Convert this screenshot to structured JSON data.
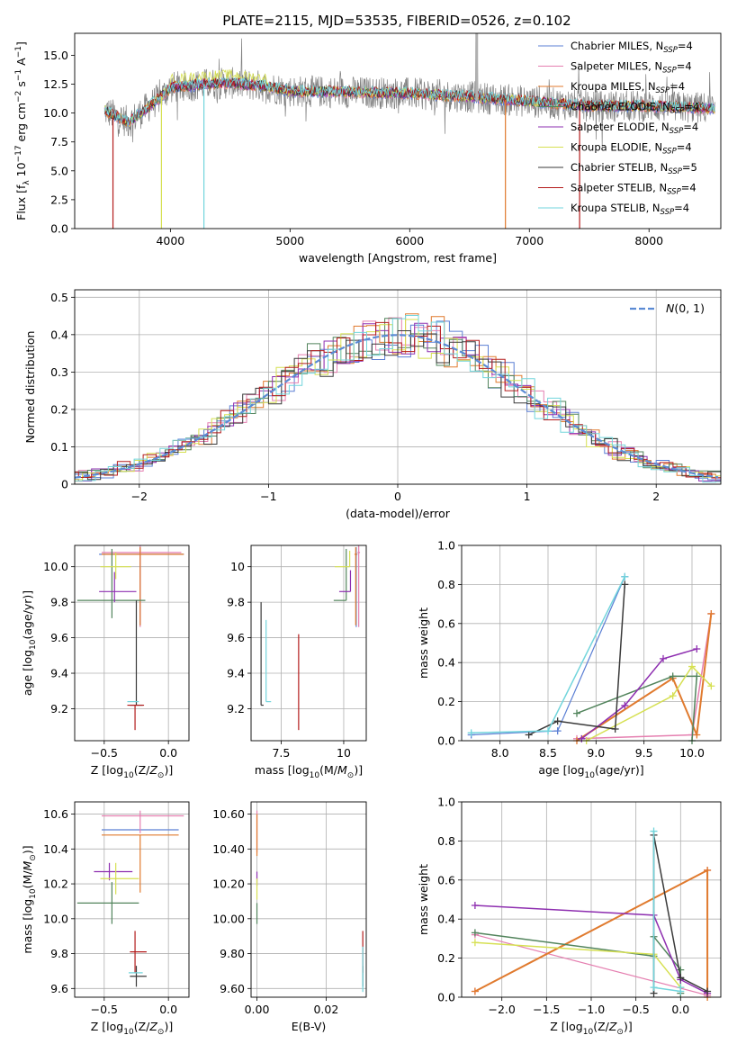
{
  "figure_title": "PLATE=2115, MJD=53535, FIBERID=0526, z=0.102",
  "colors": {
    "Chabrier MILES": "#5b7fd4",
    "Salpeter MILES": "#e57fb0",
    "Kroupa MILES": "#e07a2e",
    "Chabrier ELODIE": "#52845c",
    "Salpeter ELODIE": "#8e2fb0",
    "Kroupa ELODIE": "#d6e052",
    "Chabrier STELIB": "#3a3a3a",
    "Salpeter STELIB": "#b31b1b",
    "Kroupa STELIB": "#72d5dc"
  },
  "chart_data": [
    {
      "id": "spectrum",
      "type": "line",
      "title": "PLATE=2115, MJD=53535, FIBERID=0526, z=0.102",
      "xlabel": "wavelength [Angstrom, rest frame]",
      "ylabel": "Flux [f_λ 10^-17 erg cm^-2 s^-1 A^-1]",
      "xlim": [
        3200,
        8600
      ],
      "ylim": [
        0,
        16.9
      ],
      "xticks": [
        4000,
        5000,
        6000,
        7000,
        8000
      ],
      "yticks": [
        0.0,
        2.5,
        5.0,
        7.5,
        10.0,
        12.5,
        15.0
      ],
      "grid": false,
      "legend_position": "top-right",
      "legend": [
        {
          "name": "Chabrier MILES",
          "sub": "SSP",
          "n": "4"
        },
        {
          "name": "Salpeter MILES",
          "sub": "SSP",
          "n": "4"
        },
        {
          "name": "Kroupa MILES",
          "sub": "SSP",
          "n": "4"
        },
        {
          "name": "Chabrier ELODIE",
          "sub": "SSP",
          "n": "4"
        },
        {
          "name": "Salpeter ELODIE",
          "sub": "SSP",
          "n": "4"
        },
        {
          "name": "Kroupa ELODIE",
          "sub": "SSP",
          "n": "4"
        },
        {
          "name": "Chabrier STELIB",
          "sub": "SSP",
          "n": "5"
        },
        {
          "name": "Salpeter STELIB",
          "sub": "SSP",
          "n": "4"
        },
        {
          "name": "Kroupa STELIB",
          "sub": "SSP",
          "n": "4"
        }
      ],
      "data_range_A": [
        3450,
        8550
      ],
      "continuum": {
        "x": [
          3450,
          3650,
          3900,
          4000,
          4300,
          4500,
          4800,
          5000,
          5500,
          6000,
          6500,
          7000,
          7500,
          8000,
          8550
        ],
        "y": [
          10.2,
          9.2,
          11.2,
          12.2,
          12.5,
          12.6,
          12.3,
          11.9,
          11.8,
          11.7,
          11.4,
          11.0,
          10.6,
          10.6,
          10.4
        ]
      }
    },
    {
      "id": "residuals",
      "type": "histogram",
      "xlabel": "(data-model)/error",
      "ylabel": "Normed distribution",
      "xlim": [
        -2.5,
        2.5
      ],
      "ylim": [
        0,
        0.52
      ],
      "xticks": [
        -2,
        -1,
        0,
        1,
        2
      ],
      "yticks": [
        0.0,
        0.1,
        0.2,
        0.3,
        0.4,
        0.5
      ],
      "grid": true,
      "legend_position": "top-right",
      "reference_curve": {
        "name": "N(0,1)",
        "color": "#5b8bd4"
      },
      "bin_width": 0.1
    },
    {
      "id": "age_vs_Z",
      "type": "scatter",
      "xlabel": "Z [log10(Z/Z☉)]",
      "ylabel": "age [log10(age/yr)]",
      "xlim": [
        -0.73,
        0.16
      ],
      "ylim": [
        9.02,
        10.12
      ],
      "xticks": [
        -0.5,
        0.0
      ],
      "yticks": [
        9.2,
        9.4,
        9.6,
        9.8,
        10.0
      ],
      "grid": true,
      "points": [
        {
          "model": "Chabrier MILES",
          "x": -0.22,
          "y": 10.07,
          "xerr": [
            0.32,
            0.34
          ],
          "yerr": [
            0.4,
            0.04
          ]
        },
        {
          "model": "Salpeter MILES",
          "x": -0.22,
          "y": 10.08,
          "xerr": [
            0.3,
            0.32
          ],
          "yerr": [
            0.42,
            0.04
          ]
        },
        {
          "model": "Kroupa MILES",
          "x": -0.22,
          "y": 10.07,
          "xerr": [
            0.3,
            0.34
          ],
          "yerr": [
            0.4,
            0.04
          ]
        },
        {
          "model": "Chabrier ELODIE",
          "x": -0.44,
          "y": 9.81,
          "xerr": [
            0.27,
            0.26
          ],
          "yerr": [
            0.1,
            0.29
          ]
        },
        {
          "model": "Salpeter ELODIE",
          "x": -0.42,
          "y": 9.86,
          "xerr": [
            0.12,
            0.17
          ],
          "yerr": [
            0.06,
            0.11
          ]
        },
        {
          "model": "Kroupa ELODIE",
          "x": -0.41,
          "y": 10.0,
          "xerr": [
            0.12,
            0.12
          ],
          "yerr": [
            0.07,
            0.08
          ]
        },
        {
          "model": "Chabrier STELIB",
          "x": -0.25,
          "y": 9.22,
          "xerr": [
            0.05,
            0.05
          ],
          "yerr": [
            0.0,
            0.59
          ]
        },
        {
          "model": "Salpeter STELIB",
          "x": -0.26,
          "y": 9.22,
          "xerr": [
            0.06,
            0.07
          ],
          "yerr": [
            0.14,
            0.0
          ]
        },
        {
          "model": "Kroupa STELIB",
          "x": -0.27,
          "y": 9.24,
          "xerr": [
            0.05,
            0.04
          ],
          "yerr": [
            0.0,
            0.0
          ]
        }
      ]
    },
    {
      "id": "age_vs_mass",
      "type": "scatter",
      "xlabel": "mass [log10(M/M☉)]",
      "ylabel": "",
      "xlim": [
        6.3,
        10.9
      ],
      "ylim": [
        9.02,
        10.12
      ],
      "xticks": [
        7.5,
        10.0
      ],
      "yticks": [
        9.2,
        9.4,
        9.6,
        9.8,
        10.0
      ],
      "grid": true,
      "points": [
        {
          "model": "Chabrier MILES",
          "x": 10.5,
          "y": 10.07,
          "xerr": [
            0.05,
            0.05
          ],
          "yerr": [
            0.41,
            0.04
          ]
        },
        {
          "model": "Salpeter MILES",
          "x": 10.6,
          "y": 10.08,
          "xerr": [
            0.05,
            0.05
          ],
          "yerr": [
            0.42,
            0.04
          ]
        },
        {
          "model": "Kroupa MILES",
          "x": 10.48,
          "y": 10.07,
          "xerr": [
            0.05,
            0.05
          ],
          "yerr": [
            0.4,
            0.04
          ]
        },
        {
          "model": "Chabrier ELODIE",
          "x": 10.1,
          "y": 9.81,
          "xerr": [
            0.5,
            0.0
          ],
          "yerr": [
            0.0,
            0.29
          ]
        },
        {
          "model": "Salpeter ELODIE",
          "x": 10.27,
          "y": 9.86,
          "xerr": [
            0.45,
            0.0
          ],
          "yerr": [
            0.0,
            0.12
          ]
        },
        {
          "model": "Kroupa ELODIE",
          "x": 10.24,
          "y": 10.0,
          "xerr": [
            0.6,
            0.0
          ],
          "yerr": [
            0.0,
            0.09
          ]
        },
        {
          "model": "Chabrier STELIB",
          "x": 6.7,
          "y": 9.22,
          "xerr": [
            0.0,
            0.1
          ],
          "yerr": [
            0.0,
            0.58
          ]
        },
        {
          "model": "Salpeter STELIB",
          "x": 8.2,
          "y": 9.22,
          "xerr": [
            0.0,
            0.0
          ],
          "yerr": [
            0.14,
            0.4
          ]
        },
        {
          "model": "Kroupa STELIB",
          "x": 6.9,
          "y": 9.24,
          "xerr": [
            0.0,
            0.2
          ],
          "yerr": [
            0.0,
            0.46
          ]
        }
      ]
    },
    {
      "id": "massweight_vs_age",
      "type": "line",
      "xlabel": "age [log10(age/yr)]",
      "ylabel": "mass weight",
      "xlim": [
        7.6,
        10.3
      ],
      "ylim": [
        0.0,
        1.0
      ],
      "xticks": [
        8.0,
        8.5,
        9.0,
        9.5,
        10.0
      ],
      "yticks": [
        0.0,
        0.2,
        0.4,
        0.6,
        0.8,
        1.0
      ],
      "grid": true,
      "series": [
        {
          "model": "Chabrier MILES",
          "x": [
            7.7,
            8.6,
            9.3
          ],
          "y": [
            0.03,
            0.05,
            0.84
          ],
          "lw": 1.2
        },
        {
          "model": "Salpeter MILES",
          "x": [
            8.8,
            10.0,
            10.2
          ],
          "y": [
            0.01,
            0.03,
            0.65
          ],
          "lw": 1.5
        },
        {
          "model": "Kroupa MILES",
          "x": [
            8.8,
            9.8,
            10.05,
            10.2
          ],
          "y": [
            0.0,
            0.32,
            0.03,
            0.65
          ],
          "lw": 2.0
        },
        {
          "model": "Chabrier ELODIE",
          "x": [
            8.8,
            9.8,
            10.05,
            10.0
          ],
          "y": [
            0.14,
            0.33,
            0.33,
            0.0
          ],
          "lw": 1.5
        },
        {
          "model": "Salpeter ELODIE",
          "x": [
            8.85,
            9.3,
            9.7,
            10.05
          ],
          "y": [
            0.01,
            0.18,
            0.42,
            0.47
          ],
          "lw": 1.5
        },
        {
          "model": "Kroupa ELODIE",
          "x": [
            8.9,
            9.8,
            10.0,
            10.2
          ],
          "y": [
            0.0,
            0.23,
            0.38,
            0.28
          ],
          "lw": 1.5
        },
        {
          "model": "Chabrier STELIB",
          "x": [
            8.3,
            8.6,
            9.2,
            9.3
          ],
          "y": [
            0.03,
            0.1,
            0.06,
            0.8
          ],
          "lw": 1.5
        },
        {
          "model": "Kroupa STELIB",
          "x": [
            7.7,
            8.5,
            9.3
          ],
          "y": [
            0.04,
            0.05,
            0.84
          ],
          "lw": 1.5
        }
      ]
    },
    {
      "id": "mass_vs_Z",
      "type": "scatter",
      "xlabel": "Z [log10(Z/Z☉)]",
      "ylabel": "mass [log10(M/M☉)]",
      "xlim": [
        -0.73,
        0.16
      ],
      "ylim": [
        9.55,
        10.67
      ],
      "xticks": [
        -0.5,
        0.0
      ],
      "yticks": [
        9.6,
        9.8,
        10.0,
        10.2,
        10.4,
        10.6
      ],
      "grid": true,
      "points": [
        {
          "model": "Chabrier MILES",
          "x": -0.22,
          "y": 10.51,
          "xerr": [
            0.3,
            0.3
          ],
          "yerr": [
            0.0,
            0.0
          ]
        },
        {
          "model": "Salpeter MILES",
          "x": -0.22,
          "y": 10.59,
          "xerr": [
            0.3,
            0.34
          ],
          "yerr": [
            0.1,
            0.03
          ]
        },
        {
          "model": "Kroupa MILES",
          "x": -0.22,
          "y": 10.48,
          "xerr": [
            0.3,
            0.3
          ],
          "yerr": [
            0.33,
            0.0
          ]
        },
        {
          "model": "Chabrier ELODIE",
          "x": -0.44,
          "y": 10.09,
          "xerr": [
            0.27,
            0.21
          ],
          "yerr": [
            0.12,
            0.12
          ]
        },
        {
          "model": "Salpeter ELODIE",
          "x": -0.46,
          "y": 10.27,
          "xerr": [
            0.12,
            0.18
          ],
          "yerr": [
            0.05,
            0.05
          ]
        },
        {
          "model": "Kroupa ELODIE",
          "x": -0.41,
          "y": 10.23,
          "xerr": [
            0.12,
            0.18
          ],
          "yerr": [
            0.09,
            0.09
          ]
        },
        {
          "model": "Chabrier STELIB",
          "x": -0.25,
          "y": 9.67,
          "xerr": [
            0.05,
            0.08
          ],
          "yerr": [
            0.06,
            0.06
          ]
        },
        {
          "model": "Salpeter STELIB",
          "x": -0.26,
          "y": 9.81,
          "xerr": [
            0.04,
            0.09
          ],
          "yerr": [
            0.12,
            0.12
          ]
        },
        {
          "model": "Kroupa STELIB",
          "x": -0.27,
          "y": 9.69,
          "xerr": [
            0.04,
            0.07
          ],
          "yerr": [
            0.0,
            0.0
          ]
        }
      ]
    },
    {
      "id": "mass_vs_EBV",
      "type": "scatter",
      "xlabel": "E(B-V)",
      "ylabel": "",
      "xlim": [
        -0.0017,
        0.0316
      ],
      "ylim": [
        9.55,
        10.67
      ],
      "xticks": [
        0.0,
        0.02
      ],
      "yticks": [
        9.6,
        9.8,
        10.0,
        10.2,
        10.4,
        10.6
      ],
      "grid": true,
      "points": [
        {
          "model": "Chabrier MILES",
          "x": 0.0,
          "y": 10.51,
          "xerr": [
            0.0,
            0.0
          ],
          "yerr": [
            0.0,
            0.0
          ]
        },
        {
          "model": "Salpeter MILES",
          "x": 0.0,
          "y": 10.5,
          "xerr": [
            0.0,
            0.0
          ],
          "yerr": [
            0.12,
            0.12
          ]
        },
        {
          "model": "Kroupa MILES",
          "x": 0.0,
          "y": 10.48,
          "xerr": [
            0.0,
            0.0
          ],
          "yerr": [
            0.12,
            0.12
          ]
        },
        {
          "model": "Chabrier ELODIE",
          "x": 0.0,
          "y": 10.09,
          "xerr": [
            0.0,
            0.0
          ],
          "yerr": [
            0.12,
            0.0
          ]
        },
        {
          "model": "Salpeter ELODIE",
          "x": 0.0,
          "y": 10.27,
          "xerr": [
            0.0,
            0.0
          ],
          "yerr": [
            0.08,
            0.0
          ]
        },
        {
          "model": "Kroupa ELODIE",
          "x": 0.0,
          "y": 10.23,
          "xerr": [
            0.0,
            0.0
          ],
          "yerr": [
            0.12,
            0.0
          ]
        },
        {
          "model": "Chabrier STELIB",
          "x": 0.0306,
          "y": 9.67,
          "xerr": [
            0.0,
            0.0
          ],
          "yerr": [
            0.06,
            0.06
          ]
        },
        {
          "model": "Salpeter STELIB",
          "x": 0.0306,
          "y": 9.81,
          "xerr": [
            0.0,
            0.0
          ],
          "yerr": [
            0.12,
            0.12
          ]
        },
        {
          "model": "Kroupa STELIB",
          "x": 0.0306,
          "y": 9.71,
          "xerr": [
            0.0,
            0.0
          ],
          "yerr": [
            0.13,
            0.13
          ]
        }
      ]
    },
    {
      "id": "massweight_vs_Z",
      "type": "line",
      "xlabel": "Z [log10(Z/Z☉)]",
      "ylabel": "mass weight",
      "xlim": [
        -2.45,
        0.45
      ],
      "ylim": [
        0.0,
        1.0
      ],
      "xticks": [
        -2.0,
        -1.5,
        -1.0,
        -0.5,
        0.0
      ],
      "yticks": [
        0.0,
        0.2,
        0.4,
        0.6,
        0.8,
        1.0
      ],
      "grid": true,
      "series": [
        {
          "model": "Salpeter MILES",
          "x": [
            -2.3,
            0.3,
            0.3,
            -2.3
          ],
          "y": [
            0.03,
            0.65,
            0.01,
            0.32
          ],
          "lw": 1.2
        },
        {
          "model": "Kroupa MILES",
          "x": [
            -2.3,
            0.3,
            0.3
          ],
          "y": [
            0.03,
            0.65,
            0.0
          ],
          "lw": 2.0
        },
        {
          "model": "Chabrier ELODIE",
          "x": [
            -2.3,
            -0.3,
            -0.3,
            0.0,
            0.0
          ],
          "y": [
            0.33,
            0.21,
            0.31,
            0.14,
            0.02
          ],
          "lw": 1.5
        },
        {
          "model": "Salpeter ELODIE",
          "x": [
            -2.3,
            -0.3,
            0.0,
            0.3
          ],
          "y": [
            0.47,
            0.42,
            0.09,
            0.02
          ],
          "lw": 1.5
        },
        {
          "model": "Kroupa ELODIE",
          "x": [
            -2.3,
            -0.3,
            0.0
          ],
          "y": [
            0.28,
            0.22,
            0.05
          ],
          "lw": 1.5
        },
        {
          "model": "Chabrier STELIB",
          "x": [
            -0.3,
            -0.3,
            0.0,
            0.3
          ],
          "y": [
            0.02,
            0.83,
            0.1,
            0.03
          ],
          "lw": 1.5
        },
        {
          "model": "Kroupa STELIB",
          "x": [
            -0.3,
            -0.3,
            0.0,
            0.0
          ],
          "y": [
            0.85,
            0.05,
            0.03,
            0.05
          ],
          "lw": 1.5
        }
      ]
    }
  ]
}
